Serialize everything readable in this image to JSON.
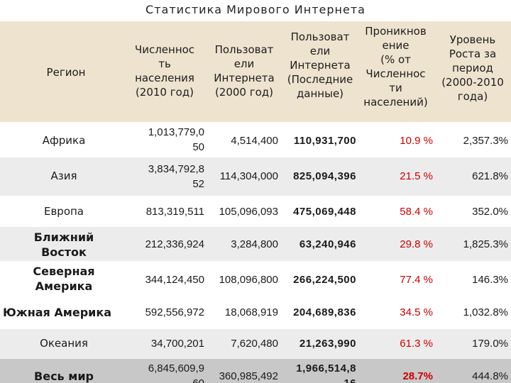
{
  "title": "Статистика Мирового Интернета",
  "headers": {
    "region": "Регион",
    "population": "Численнос\nть\nнаселения\n(2010 год)",
    "users2000": "Пользоват\nели\nИнтернета\n(2000 год)",
    "users_latest": "Пользоват\nели\nИнтернета\n(Последние\nданные)",
    "penetration": "Проникнов\nение\n(% от\nЧисленнос\nти\nнаселений)",
    "growth": "Уровень\nРоста за\nпериод\n(2000-2010\nгода)"
  },
  "rows": [
    {
      "region": "Африка",
      "population": "1,013,779,0\n50",
      "users2000": "4,514,400",
      "users_latest": "110,931,700",
      "penetration": "10.9 %",
      "growth": "2,357.3%"
    },
    {
      "region": "Азия",
      "population": "3,834,792,8\n52",
      "users2000": "114,304,000",
      "users_latest": "825,094,396",
      "penetration": "21.5 %",
      "growth": "621.8%"
    },
    {
      "region": "Европа",
      "population": "813,319,511",
      "users2000": "105,096,093",
      "users_latest": "475,069,448",
      "penetration": "58.4 %",
      "growth": "352.0%"
    },
    {
      "region": "Ближний\nВосток",
      "population": "212,336,924",
      "users2000": "3,284,800",
      "users_latest": "63,240,946",
      "penetration": "29.8 %",
      "growth": "1,825.3%"
    },
    {
      "region": "Северная\nАмерика",
      "population": "344,124,450",
      "users2000": "108,096,800",
      "users_latest": "266,224,500",
      "penetration": "77.4 %",
      "growth": "146.3%"
    },
    {
      "region": "Южная Америка",
      "population": "592,556,972",
      "users2000": "18,068,919",
      "users_latest": "204,689,836",
      "penetration": "34.5 %",
      "growth": "1,032.8%"
    },
    {
      "region": "Океания",
      "population": "34,700,201",
      "users2000": "7,620,480",
      "users_latest": "21,263,990",
      "penetration": "61.3 %",
      "growth": "179.0%"
    }
  ],
  "total": {
    "region": "Весь мир",
    "population": "6,845,609,9\n60",
    "users2000": "360,985,492",
    "users_latest": "1,966,514,8\n16",
    "penetration": "28.7%",
    "growth": "444.8%"
  }
}
